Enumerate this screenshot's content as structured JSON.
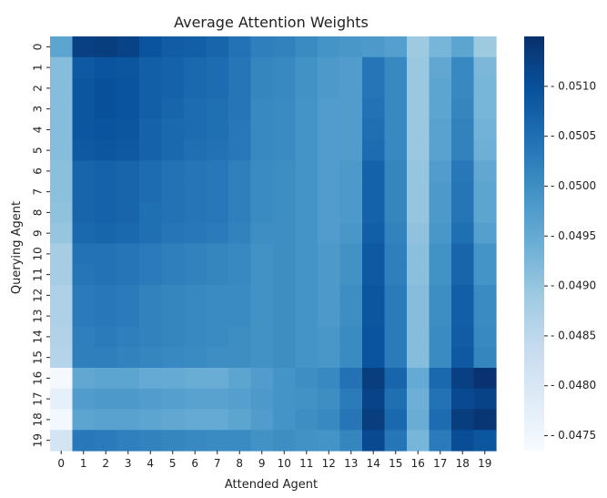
{
  "chart_data": {
    "type": "heatmap",
    "title": "Average Attention Weights",
    "xlabel": "Attended Agent",
    "ylabel": "Querying Agent",
    "x_categories": [
      "0",
      "1",
      "2",
      "3",
      "4",
      "5",
      "6",
      "7",
      "8",
      "9",
      "10",
      "11",
      "12",
      "13",
      "14",
      "15",
      "16",
      "17",
      "18",
      "19"
    ],
    "y_categories": [
      "0",
      "1",
      "2",
      "3",
      "4",
      "5",
      "6",
      "7",
      "8",
      "9",
      "10",
      "11",
      "12",
      "13",
      "14",
      "15",
      "16",
      "17",
      "18",
      "19"
    ],
    "colorbar": {
      "range": [
        0.04735,
        0.0515
      ],
      "ticks": [
        "0.0475",
        "0.0480",
        "0.0485",
        "0.0490",
        "0.0495",
        "0.0500",
        "0.0505",
        "0.0510"
      ],
      "colormap": "Blues"
    },
    "values": [
      [
        0.0496,
        0.05125,
        0.0513,
        0.0512,
        0.05095,
        0.0508,
        0.05075,
        0.05065,
        0.05045,
        0.05025,
        0.0502,
        0.05005,
        0.0499,
        0.04985,
        0.0498,
        0.0497,
        0.0489,
        0.0493,
        0.0496,
        0.0489
      ],
      [
        0.04915,
        0.05085,
        0.05095,
        0.0509,
        0.05075,
        0.0507,
        0.0506,
        0.05055,
        0.0504,
        0.05015,
        0.0501,
        0.04995,
        0.0498,
        0.04975,
        0.0504,
        0.0501,
        0.04895,
        0.04955,
        0.0501,
        0.04925
      ],
      [
        0.04915,
        0.0509,
        0.051,
        0.05095,
        0.05075,
        0.0507,
        0.0506,
        0.05055,
        0.0504,
        0.05015,
        0.0501,
        0.04995,
        0.0498,
        0.04975,
        0.0504,
        0.0501,
        0.04895,
        0.0496,
        0.0501,
        0.0493
      ],
      [
        0.04915,
        0.0509,
        0.051,
        0.05095,
        0.05075,
        0.05065,
        0.05055,
        0.0505,
        0.0504,
        0.0501,
        0.05005,
        0.0499,
        0.04975,
        0.04975,
        0.05045,
        0.0501,
        0.04895,
        0.0496,
        0.05015,
        0.0493
      ],
      [
        0.04915,
        0.0509,
        0.05095,
        0.0509,
        0.0507,
        0.0506,
        0.05055,
        0.0505,
        0.05035,
        0.0501,
        0.05005,
        0.0499,
        0.04975,
        0.04975,
        0.0505,
        0.0501,
        0.04895,
        0.04965,
        0.0502,
        0.04935
      ],
      [
        0.04915,
        0.05085,
        0.0509,
        0.05085,
        0.0507,
        0.0506,
        0.0505,
        0.05045,
        0.05035,
        0.0501,
        0.05005,
        0.0499,
        0.04975,
        0.04975,
        0.05055,
        0.0501,
        0.04895,
        0.04965,
        0.0502,
        0.0494
      ],
      [
        0.0491,
        0.05065,
        0.0507,
        0.05065,
        0.05055,
        0.05045,
        0.0504,
        0.05035,
        0.05025,
        0.05005,
        0.05,
        0.0499,
        0.04975,
        0.0498,
        0.0507,
        0.05015,
        0.049,
        0.04975,
        0.05035,
        0.04955
      ],
      [
        0.0491,
        0.05065,
        0.0507,
        0.05065,
        0.05055,
        0.05045,
        0.0504,
        0.05035,
        0.05025,
        0.05005,
        0.05,
        0.0499,
        0.04975,
        0.0498,
        0.0507,
        0.05015,
        0.049,
        0.0498,
        0.0504,
        0.0496
      ],
      [
        0.04905,
        0.05065,
        0.0507,
        0.05065,
        0.0505,
        0.05045,
        0.0504,
        0.05035,
        0.05025,
        0.05005,
        0.05,
        0.0499,
        0.04975,
        0.0498,
        0.0507,
        0.05015,
        0.049,
        0.0498,
        0.0504,
        0.0496
      ],
      [
        0.049,
        0.0506,
        0.05065,
        0.0506,
        0.0505,
        0.0504,
        0.05035,
        0.0503,
        0.0502,
        0.05,
        0.05,
        0.0499,
        0.04975,
        0.04985,
        0.05075,
        0.0502,
        0.04905,
        0.04985,
        0.0505,
        0.0497
      ],
      [
        0.0488,
        0.05045,
        0.05045,
        0.0504,
        0.0503,
        0.05025,
        0.0502,
        0.05015,
        0.0501,
        0.04995,
        0.05,
        0.0499,
        0.0498,
        0.04995,
        0.05085,
        0.05025,
        0.0491,
        0.04995,
        0.05065,
        0.0499
      ],
      [
        0.0488,
        0.0504,
        0.05045,
        0.0504,
        0.0503,
        0.05025,
        0.0502,
        0.05015,
        0.0501,
        0.04995,
        0.05,
        0.0499,
        0.0498,
        0.04995,
        0.05085,
        0.05025,
        0.0491,
        0.04995,
        0.05065,
        0.0499
      ],
      [
        0.0487,
        0.0503,
        0.05035,
        0.0503,
        0.0502,
        0.05015,
        0.0501,
        0.05005,
        0.05005,
        0.04995,
        0.05,
        0.0499,
        0.0498,
        0.05,
        0.0509,
        0.0503,
        0.04915,
        0.05,
        0.05075,
        0.05005
      ],
      [
        0.0487,
        0.0503,
        0.05035,
        0.0503,
        0.0502,
        0.05015,
        0.0501,
        0.05005,
        0.05005,
        0.04995,
        0.05,
        0.0499,
        0.0498,
        0.05,
        0.0509,
        0.0503,
        0.04915,
        0.05,
        0.05075,
        0.05005
      ],
      [
        0.04865,
        0.05025,
        0.0503,
        0.05025,
        0.0502,
        0.05015,
        0.0501,
        0.05005,
        0.05,
        0.04995,
        0.05,
        0.0499,
        0.04985,
        0.05005,
        0.05095,
        0.0503,
        0.04915,
        0.05005,
        0.0508,
        0.0501
      ],
      [
        0.0486,
        0.05025,
        0.05025,
        0.0502,
        0.05015,
        0.0501,
        0.05005,
        0.05,
        0.05,
        0.04995,
        0.05,
        0.0499,
        0.04985,
        0.05005,
        0.05095,
        0.0503,
        0.04915,
        0.05005,
        0.05085,
        0.05015
      ],
      [
        0.0474,
        0.04955,
        0.0496,
        0.0496,
        0.0495,
        0.0495,
        0.04945,
        0.04945,
        0.0496,
        0.04975,
        0.0499,
        0.05,
        0.0501,
        0.05045,
        0.0513,
        0.05065,
        0.0495,
        0.0506,
        0.05125,
        0.05145
      ],
      [
        0.0477,
        0.04975,
        0.0498,
        0.0498,
        0.04975,
        0.0497,
        0.04965,
        0.04965,
        0.0497,
        0.0498,
        0.0499,
        0.04995,
        0.05,
        0.0503,
        0.0512,
        0.0505,
        0.0494,
        0.05045,
        0.0511,
        0.0512
      ],
      [
        0.04745,
        0.0496,
        0.04965,
        0.04965,
        0.0496,
        0.04955,
        0.0495,
        0.0495,
        0.0496,
        0.04975,
        0.0499,
        0.05,
        0.0501,
        0.0504,
        0.0513,
        0.0506,
        0.04945,
        0.05055,
        0.0513,
        0.0514
      ],
      [
        0.0481,
        0.05035,
        0.0503,
        0.05025,
        0.0502,
        0.05015,
        0.0501,
        0.05005,
        0.05005,
        0.04995,
        0.05,
        0.04995,
        0.0499,
        0.05015,
        0.0511,
        0.0504,
        0.0493,
        0.0503,
        0.05105,
        0.0509
      ]
    ]
  }
}
